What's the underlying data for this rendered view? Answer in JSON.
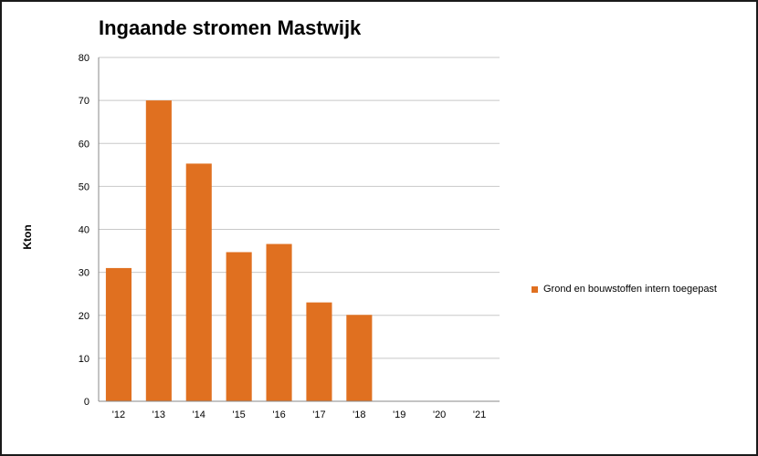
{
  "chart_data": {
    "type": "bar",
    "title": "Ingaande stromen Mastwijk",
    "xlabel": "",
    "ylabel": "Kton",
    "categories": [
      "'12",
      "'13",
      "'14",
      "'15",
      "'16",
      "'17",
      "'18",
      "'19",
      "'20",
      "'21"
    ],
    "series": [
      {
        "name": "Grond en bouwstoffen intern toegepast",
        "color": "#e07020",
        "values": [
          31,
          70,
          55.3,
          34.7,
          36.6,
          23,
          20.1,
          0,
          0,
          0
        ]
      }
    ],
    "ylim": [
      0,
      80
    ],
    "yticks": [
      0,
      10,
      20,
      30,
      40,
      50,
      60,
      70,
      80
    ],
    "grid": true,
    "legend_position": "right"
  },
  "colors": {
    "gridline": "#c8c8c8",
    "axis": "#888888",
    "frame": "#1a1a1a"
  }
}
